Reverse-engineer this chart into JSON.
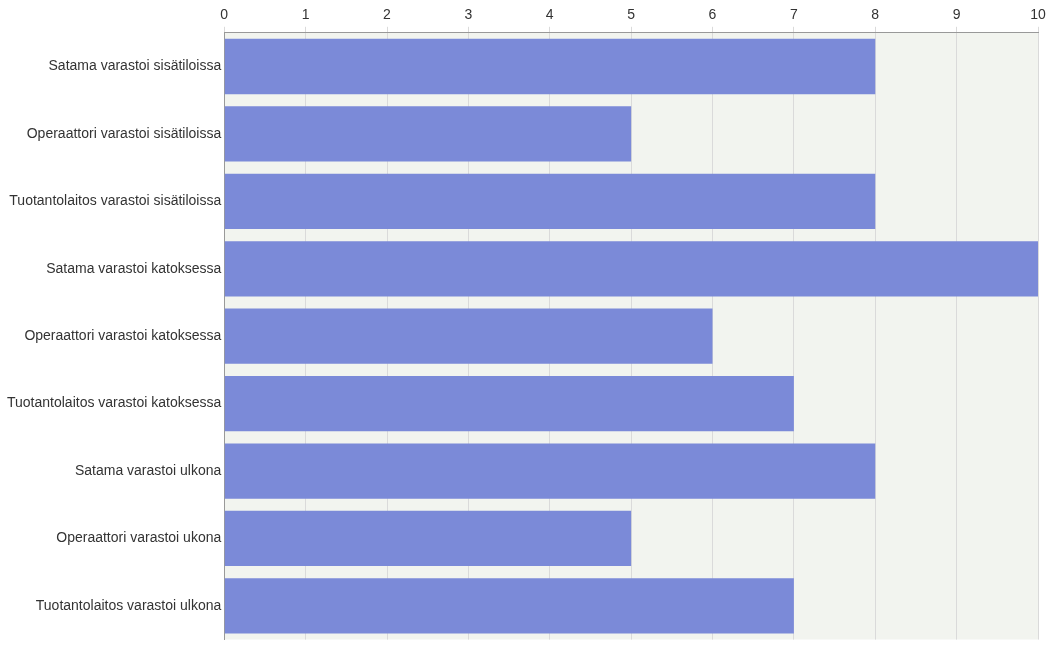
{
  "chart_data": {
    "type": "bar",
    "orientation": "horizontal",
    "categories": [
      "Satama varastoi sisätiloissa",
      "Operaattori varastoi sisätiloissa",
      "Tuotantolaitos varastoi sisätiloissa",
      "Satama varastoi katoksessa",
      "Operaattori varastoi katoksessa",
      "Tuotantolaitos varastoi katoksessa",
      "Satama varastoi ulkona",
      "Operaattori varastoi ukona",
      "Tuotantolaitos varastoi ulkona"
    ],
    "values": [
      8,
      5,
      8,
      10,
      6,
      7,
      8,
      5,
      7
    ],
    "color": "#7b8ad8",
    "xlim": [
      0,
      10
    ],
    "xticks": [
      0,
      1,
      2,
      3,
      4,
      5,
      6,
      7,
      8,
      9,
      10
    ],
    "grid": "x"
  }
}
